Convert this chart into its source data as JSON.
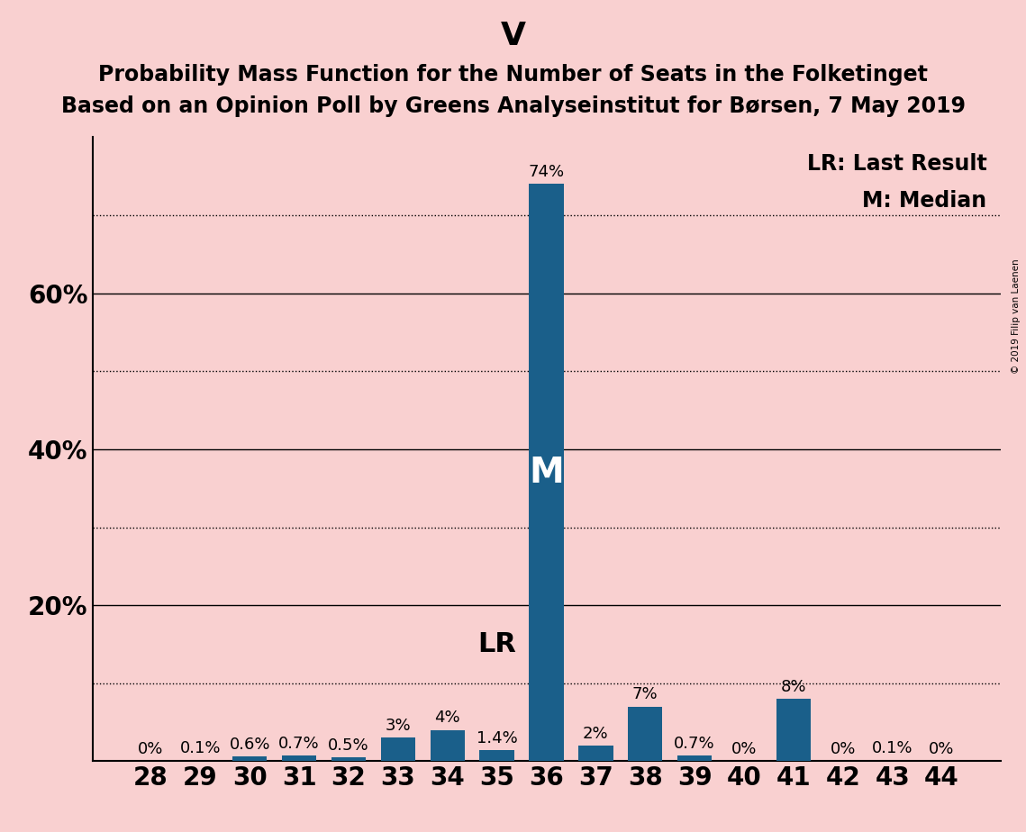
{
  "title_main": "V",
  "title_line1": "Probability Mass Function for the Number of Seats in the Folketinget",
  "title_line2": "Based on an Opinion Poll by Greens Analyseinstitut for Børsen, 7 May 2019",
  "seats": [
    28,
    29,
    30,
    31,
    32,
    33,
    34,
    35,
    36,
    37,
    38,
    39,
    40,
    41,
    42,
    43,
    44
  ],
  "probabilities": [
    0.0,
    0.1,
    0.6,
    0.7,
    0.5,
    3.0,
    4.0,
    1.4,
    74.0,
    2.0,
    7.0,
    0.7,
    0.0,
    8.0,
    0.0,
    0.1,
    0.0
  ],
  "labels": [
    "0%",
    "0.1%",
    "0.6%",
    "0.7%",
    "0.5%",
    "3%",
    "4%",
    "1.4%",
    "74%",
    "2%",
    "7%",
    "0.7%",
    "0%",
    "8%",
    "0%",
    "0.1%",
    "0%"
  ],
  "bar_color": "#1a5f8a",
  "background_color": "#f9d0d0",
  "median_seat": 36,
  "last_result_seat": 35,
  "legend_lr": "LR: Last Result",
  "legend_m": "M: Median",
  "watermark": "© 2019 Filip van Laenen",
  "ylim": [
    0,
    80
  ],
  "solid_grid": [
    20,
    40,
    60
  ],
  "dotted_grid": [
    10,
    30,
    50,
    70
  ],
  "ytick_positions": [
    20,
    40,
    60
  ],
  "ytick_labels": [
    "20%",
    "40%",
    "60%"
  ],
  "title_fontsize": 26,
  "subtitle_fontsize": 17,
  "axis_label_fontsize": 20,
  "bar_label_fontsize": 13,
  "lr_fontsize": 22,
  "m_fontsize": 28,
  "legend_fontsize": 17
}
